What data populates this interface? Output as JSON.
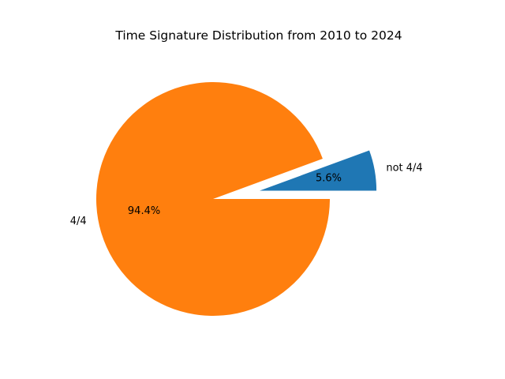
{
  "chart_data": {
    "type": "pie",
    "title": "Time Signature Distribution from 2010 to 2024",
    "start_angle_deg": 0,
    "direction": "counterclockwise",
    "legend": "none",
    "slices": [
      {
        "label": "not 4/4",
        "value": 5.6,
        "pct_label": "5.6%",
        "color": "#1f77b4",
        "exploded": true
      },
      {
        "label": "4/4",
        "value": 94.4,
        "pct_label": "94.4%",
        "color": "#ff7f0e",
        "exploded": false
      }
    ]
  }
}
